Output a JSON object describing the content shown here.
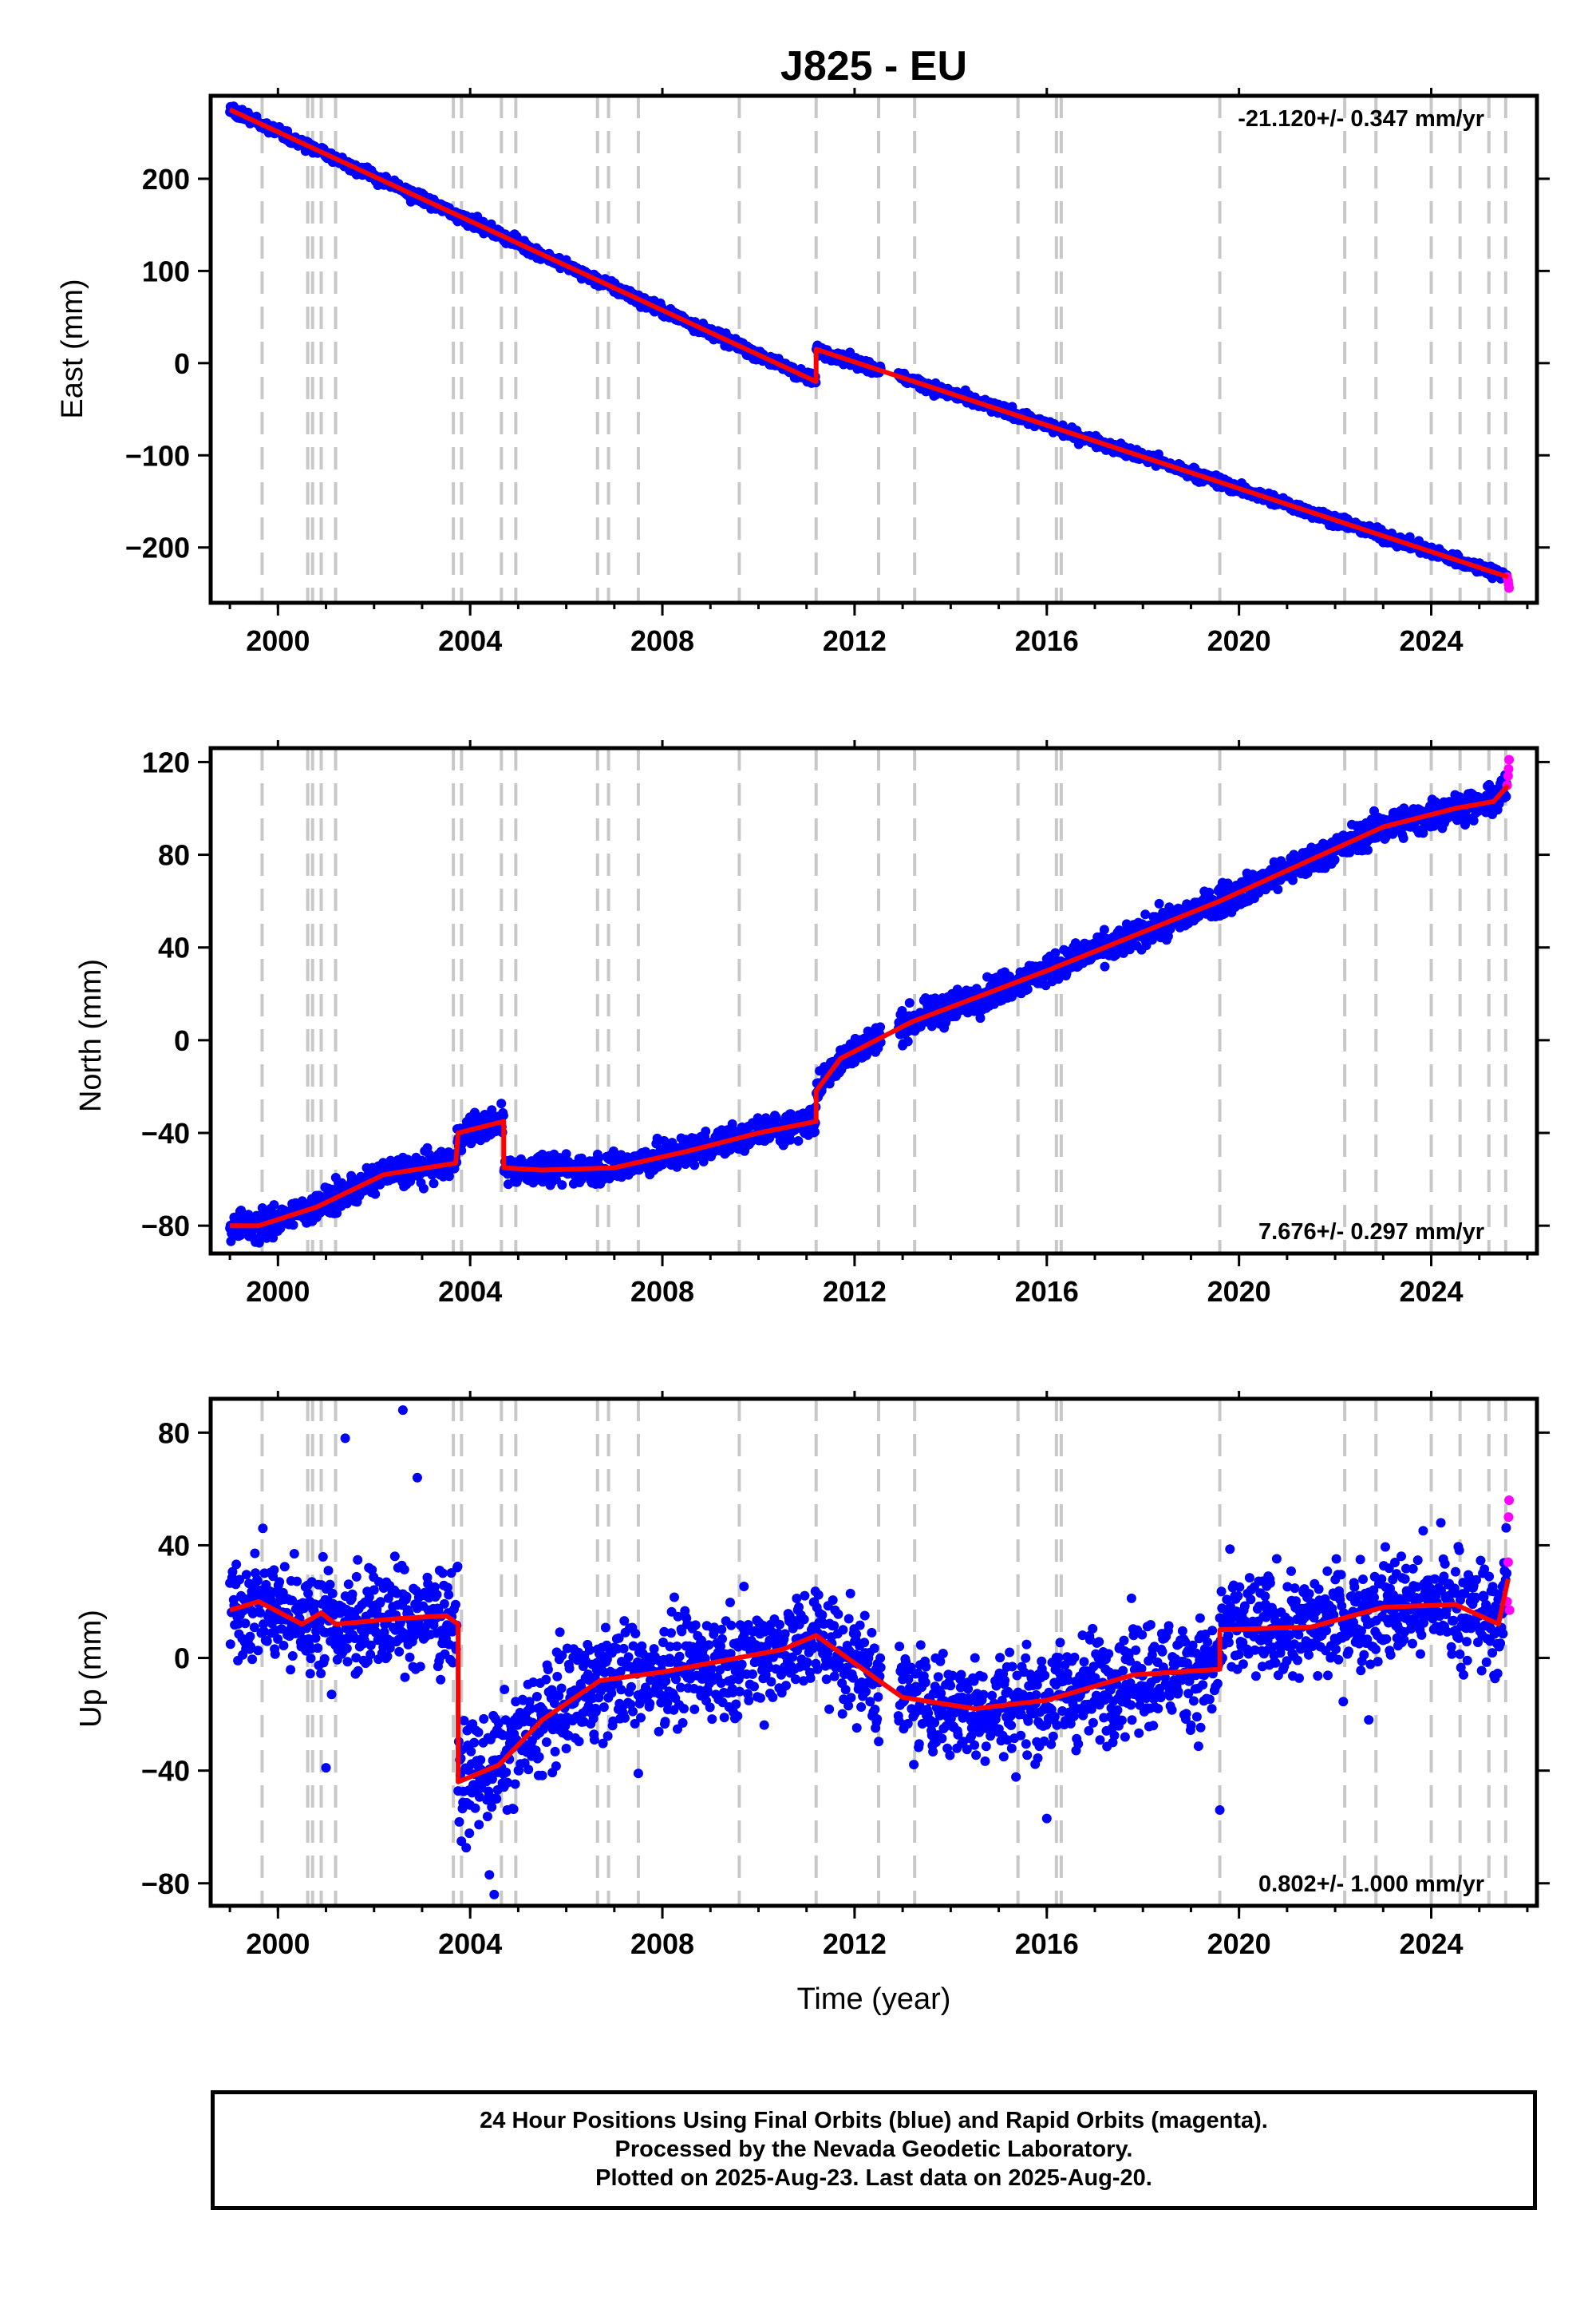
{
  "figure": {
    "title": "J825 - EU",
    "xlabel": "Time (year)",
    "footer": [
      "24 Hour Positions Using Final Orbits (blue) and Rapid Orbits (magenta).",
      "Processed by the Nevada Geodetic Laboratory.",
      "Plotted on 2025-Aug-23. Last data on 2025-Aug-20."
    ]
  },
  "chart_data": [
    {
      "type": "scatter",
      "panel": "east",
      "ylabel": "East (mm)",
      "rate_label": "-21.120+/- 0.347 mm/yr",
      "rate_position": "top-right",
      "xlim": [
        1998.6,
        2026.2
      ],
      "ylim": [
        -260,
        290
      ],
      "xticks": [
        2000,
        2004,
        2008,
        2012,
        2016,
        2020,
        2024
      ],
      "xtick_labels": [
        "2000",
        "2004",
        "2008",
        "2012",
        "2016",
        "2020",
        "2024"
      ],
      "yticks": [
        -200,
        -100,
        0,
        100,
        200
      ],
      "ytick_labels": [
        "−200",
        "−100",
        "0",
        "100",
        "200"
      ],
      "final_orbits_color": "#0000ff",
      "rapid_orbits_color": "#ff00ff",
      "model_color": "#ff0000",
      "model": [
        [
          1999.0,
          275
        ],
        [
          2011.2,
          -20
        ],
        [
          2011.2,
          15
        ],
        [
          2025.6,
          -232
        ]
      ],
      "noise_mm": 3,
      "rapid_points": [
        [
          2025.58,
          -232
        ],
        [
          2025.6,
          -236
        ],
        [
          2025.61,
          -240
        ],
        [
          2025.62,
          -244
        ]
      ],
      "outliers": []
    },
    {
      "type": "scatter",
      "panel": "north",
      "ylabel": "North (mm)",
      "rate_label": "7.676+/- 0.297 mm/yr",
      "rate_position": "bottom-right",
      "xlim": [
        1998.6,
        2026.2
      ],
      "ylim": [
        -92,
        126
      ],
      "xticks": [
        2000,
        2004,
        2008,
        2012,
        2016,
        2020,
        2024
      ],
      "xtick_labels": [
        "2000",
        "2004",
        "2008",
        "2012",
        "2016",
        "2020",
        "2024"
      ],
      "yticks": [
        -80,
        -40,
        0,
        40,
        80,
        120
      ],
      "ytick_labels": [
        "−80",
        "−40",
        "0",
        "40",
        "80",
        "120"
      ],
      "final_orbits_color": "#0000ff",
      "rapid_orbits_color": "#ff00ff",
      "model_color": "#ff0000",
      "model": [
        [
          1999.0,
          -80
        ],
        [
          1999.6,
          -80
        ],
        [
          2000.8,
          -72
        ],
        [
          2002.2,
          -58
        ],
        [
          2003.7,
          -53
        ],
        [
          2003.75,
          -40
        ],
        [
          2004.7,
          -35
        ],
        [
          2004.7,
          -55
        ],
        [
          2005.5,
          -56
        ],
        [
          2007.0,
          -55
        ],
        [
          2008.5,
          -48
        ],
        [
          2010.0,
          -40
        ],
        [
          2011.2,
          -35
        ],
        [
          2011.2,
          -22
        ],
        [
          2011.7,
          -8
        ],
        [
          2013.2,
          8
        ],
        [
          2016.0,
          30
        ],
        [
          2019.6,
          60
        ],
        [
          2023.0,
          92
        ],
        [
          2024.5,
          100
        ],
        [
          2025.3,
          103
        ],
        [
          2025.6,
          110
        ]
      ],
      "noise_mm": 3.2,
      "rapid_points": [
        [
          2025.58,
          110
        ],
        [
          2025.6,
          114
        ],
        [
          2025.61,
          117
        ],
        [
          2025.62,
          121
        ]
      ],
      "outliers": []
    },
    {
      "type": "scatter",
      "panel": "up",
      "ylabel": "Up (mm)",
      "rate_label": "0.802+/- 1.000 mm/yr",
      "rate_position": "bottom-right",
      "xlim": [
        1998.6,
        2026.2
      ],
      "ylim": [
        -88,
        92
      ],
      "xticks": [
        2000,
        2004,
        2008,
        2012,
        2016,
        2020,
        2024
      ],
      "xtick_labels": [
        "2000",
        "2004",
        "2008",
        "2012",
        "2016",
        "2020",
        "2024"
      ],
      "yticks": [
        -80,
        -40,
        0,
        40,
        80
      ],
      "ytick_labels": [
        "−80",
        "−40",
        "0",
        "40",
        "80"
      ],
      "final_orbits_color": "#0000ff",
      "rapid_orbits_color": "#ff00ff",
      "model_color": "#ff0000",
      "model": [
        [
          1999.0,
          17
        ],
        [
          1999.6,
          20
        ],
        [
          2000.5,
          12
        ],
        [
          2000.9,
          16
        ],
        [
          2001.2,
          12
        ],
        [
          2002.5,
          14
        ],
        [
          2003.5,
          15
        ],
        [
          2003.75,
          12
        ],
        [
          2003.75,
          -44
        ],
        [
          2004.6,
          -38
        ],
        [
          2005.5,
          -22
        ],
        [
          2006.7,
          -8
        ],
        [
          2008.0,
          -5
        ],
        [
          2010.5,
          3
        ],
        [
          2011.2,
          8
        ],
        [
          2012.5,
          -8
        ],
        [
          2013.0,
          -14
        ],
        [
          2014.5,
          -18
        ],
        [
          2016.0,
          -15
        ],
        [
          2017.8,
          -6
        ],
        [
          2019.6,
          -4
        ],
        [
          2019.6,
          10
        ],
        [
          2021.5,
          11
        ],
        [
          2023.0,
          18
        ],
        [
          2024.5,
          19
        ],
        [
          2025.4,
          12
        ],
        [
          2025.6,
          28
        ]
      ],
      "noise_mm": 9.5,
      "rapid_points": [
        [
          2025.58,
          20
        ],
        [
          2025.6,
          34
        ],
        [
          2025.61,
          50
        ],
        [
          2025.62,
          56
        ],
        [
          2025.63,
          17
        ]
      ],
      "outliers": [
        [
          2002.6,
          88
        ],
        [
          2001.4,
          78
        ],
        [
          2002.9,
          64
        ],
        [
          2004.5,
          -84
        ],
        [
          2004.4,
          -77
        ],
        [
          2019.6,
          -54
        ],
        [
          2007.5,
          -41
        ],
        [
          2001.0,
          -39
        ],
        [
          2016.0,
          -57
        ],
        [
          2022.7,
          -22
        ],
        [
          2024.2,
          48
        ]
      ]
    }
  ],
  "event_lines": [
    1999.67,
    2000.62,
    2000.72,
    2000.9,
    2001.2,
    2003.65,
    2003.82,
    2004.65,
    2004.95,
    2006.65,
    2006.88,
    2007.5,
    2009.6,
    2011.2,
    2012.5,
    2013.25,
    2015.4,
    2016.2,
    2016.3,
    2019.6,
    2022.2,
    2022.85,
    2024.0,
    2024.6,
    2025.2,
    2025.55
  ]
}
